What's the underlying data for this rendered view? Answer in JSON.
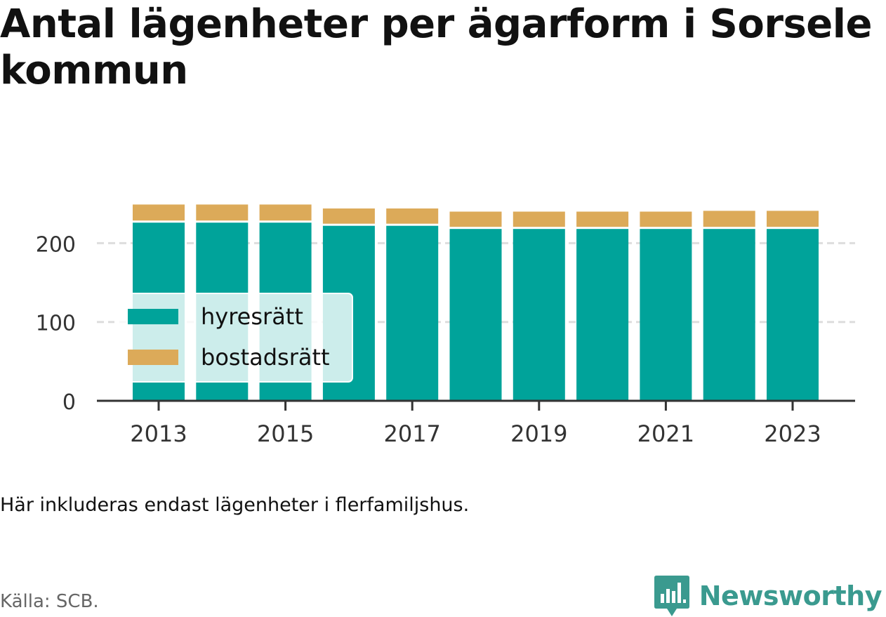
{
  "title": "Antal lägenheter per ägarform i Sorsele kommun",
  "note": "Här inkluderas endast lägenheter i flerfamiljshus.",
  "source": "Källa: SCB.",
  "brand": {
    "name": "Newsworthy",
    "icon": "newsworthy-logo-icon",
    "color": "#3a9a8f"
  },
  "chart_data": {
    "type": "bar",
    "stacked": true,
    "categories": [
      "2013",
      "2014",
      "2015",
      "2016",
      "2017",
      "2018",
      "2019",
      "2020",
      "2021",
      "2022",
      "2023"
    ],
    "series": [
      {
        "name": "hyresrätt",
        "color": "#00a39a",
        "values": [
          226,
          226,
          226,
          222,
          222,
          218,
          218,
          218,
          218,
          218,
          218
        ]
      },
      {
        "name": "bostadsrätt",
        "color": "#dcaa59",
        "values": [
          23,
          23,
          23,
          22,
          22,
          22,
          22,
          22,
          22,
          23,
          23
        ]
      }
    ],
    "yticks": [
      0,
      100,
      200
    ],
    "xticks": [
      "2013",
      "2015",
      "2017",
      "2019",
      "2021",
      "2023"
    ],
    "ylim": [
      0,
      265
    ],
    "grid": true,
    "legend": "bottom-left"
  }
}
